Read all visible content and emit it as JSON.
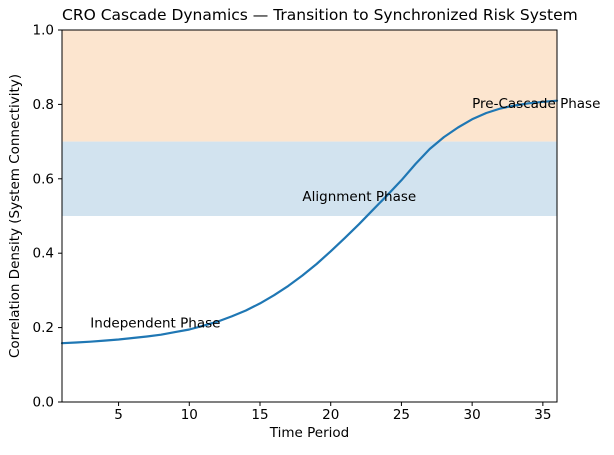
{
  "chart_data": {
    "type": "line",
    "title": "CRO Cascade Dynamics — Transition to Synchronized Risk System",
    "xlabel": "Time Period",
    "ylabel": "Correlation Density (System Connectivity)",
    "xlim": [
      1,
      36
    ],
    "ylim": [
      0.0,
      1.0
    ],
    "xticks": [
      5,
      10,
      15,
      20,
      25,
      30,
      35
    ],
    "yticks": [
      0.0,
      0.2,
      0.4,
      0.6,
      0.8,
      1.0
    ],
    "grid": false,
    "legend": "none",
    "series": [
      {
        "name": "correlation-density-curve",
        "color": "#1f77b4",
        "x": [
          1,
          2,
          3,
          4,
          5,
          6,
          7,
          8,
          9,
          10,
          11,
          12,
          13,
          14,
          15,
          16,
          17,
          18,
          19,
          20,
          21,
          22,
          23,
          24,
          25,
          26,
          27,
          28,
          29,
          30,
          31,
          32,
          33,
          34,
          35,
          36
        ],
        "y": [
          0.158,
          0.16,
          0.162,
          0.165,
          0.168,
          0.172,
          0.176,
          0.181,
          0.188,
          0.195,
          0.205,
          0.216,
          0.23,
          0.246,
          0.265,
          0.287,
          0.312,
          0.34,
          0.371,
          0.405,
          0.441,
          0.478,
          0.517,
          0.556,
          0.596,
          0.64,
          0.68,
          0.712,
          0.738,
          0.76,
          0.777,
          0.789,
          0.797,
          0.803,
          0.807,
          0.81
        ]
      }
    ],
    "bands": [
      {
        "name": "pre-cascade-zone",
        "ymin": 0.7,
        "ymax": 1.0,
        "color": "#fce5cf"
      },
      {
        "name": "alignment-zone",
        "ymin": 0.5,
        "ymax": 0.7,
        "color": "#d2e3ef"
      }
    ],
    "annotations": [
      {
        "text": "Independent Phase",
        "x": 3,
        "y": 0.2
      },
      {
        "text": "Alignment Phase",
        "x": 18,
        "y": 0.54
      },
      {
        "text": "Pre-Cascade Phase",
        "x": 30,
        "y": 0.79
      }
    ],
    "axis_color": "#000000"
  }
}
